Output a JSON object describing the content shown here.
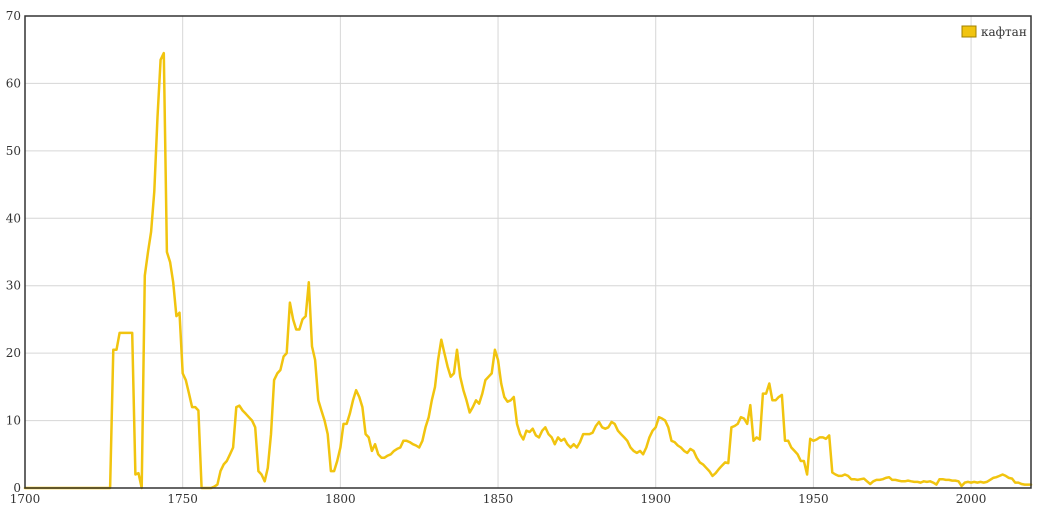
{
  "chart_data": {
    "type": "line",
    "title": "",
    "xlabel": "",
    "ylabel": "",
    "xlim": [
      1700,
      2019
    ],
    "ylim": [
      0,
      70
    ],
    "x_ticks": [
      1700,
      1750,
      1800,
      1850,
      1900,
      1950,
      2000
    ],
    "y_ticks": [
      0,
      10,
      20,
      30,
      40,
      50,
      60,
      70
    ],
    "grid": true,
    "legend": "top-right",
    "series": [
      {
        "name": "кафтан",
        "color": "#f1c40f",
        "points": [
          [
            1700,
            0
          ],
          [
            1710,
            0
          ],
          [
            1720,
            0
          ],
          [
            1727,
            0
          ],
          [
            1728,
            20.5
          ],
          [
            1729,
            20.5
          ],
          [
            1730,
            23
          ],
          [
            1731,
            23
          ],
          [
            1732,
            23
          ],
          [
            1733,
            23
          ],
          [
            1734,
            23
          ],
          [
            1735,
            2
          ],
          [
            1736,
            2.2
          ],
          [
            1737,
            0
          ],
          [
            1738,
            31.5
          ],
          [
            1739,
            35
          ],
          [
            1740,
            38
          ],
          [
            1741,
            44
          ],
          [
            1742,
            55
          ],
          [
            1743,
            63.5
          ],
          [
            1744,
            64.5
          ],
          [
            1745,
            35
          ],
          [
            1746,
            33.5
          ],
          [
            1747,
            30.5
          ],
          [
            1748,
            25.5
          ],
          [
            1749,
            26
          ],
          [
            1750,
            17
          ],
          [
            1751,
            16
          ],
          [
            1752,
            14
          ],
          [
            1753,
            12
          ],
          [
            1754,
            12
          ],
          [
            1755,
            11.5
          ],
          [
            1756,
            0
          ],
          [
            1757,
            0
          ],
          [
            1758,
            0
          ],
          [
            1759,
            0
          ],
          [
            1760,
            0.2
          ],
          [
            1761,
            0.5
          ],
          [
            1762,
            2.5
          ],
          [
            1763,
            3.5
          ],
          [
            1764,
            4
          ],
          [
            1765,
            5
          ],
          [
            1766,
            6
          ],
          [
            1767,
            12
          ],
          [
            1768,
            12.2
          ],
          [
            1769,
            11.5
          ],
          [
            1770,
            11
          ],
          [
            1771,
            10.5
          ],
          [
            1772,
            10
          ],
          [
            1773,
            9
          ],
          [
            1774,
            2.5
          ],
          [
            1775,
            2
          ],
          [
            1776,
            1
          ],
          [
            1777,
            3
          ],
          [
            1778,
            8
          ],
          [
            1779,
            16
          ],
          [
            1780,
            17
          ],
          [
            1781,
            17.5
          ],
          [
            1782,
            19.5
          ],
          [
            1783,
            20
          ],
          [
            1784,
            27.5
          ],
          [
            1785,
            25
          ],
          [
            1786,
            23.5
          ],
          [
            1787,
            23.5
          ],
          [
            1788,
            25
          ],
          [
            1789,
            25.5
          ],
          [
            1790,
            30.5
          ],
          [
            1791,
            21
          ],
          [
            1792,
            19
          ],
          [
            1793,
            13
          ],
          [
            1794,
            11.5
          ],
          [
            1795,
            10
          ],
          [
            1796,
            8
          ],
          [
            1797,
            2.5
          ],
          [
            1798,
            2.5
          ],
          [
            1799,
            4
          ],
          [
            1800,
            6
          ],
          [
            1801,
            9.5
          ],
          [
            1802,
            9.5
          ],
          [
            1803,
            11
          ],
          [
            1804,
            13
          ],
          [
            1805,
            14.5
          ],
          [
            1806,
            13.5
          ],
          [
            1807,
            12
          ],
          [
            1808,
            8
          ],
          [
            1809,
            7.5
          ],
          [
            1810,
            5.5
          ],
          [
            1811,
            6.5
          ],
          [
            1812,
            5
          ],
          [
            1813,
            4.5
          ],
          [
            1814,
            4.5
          ],
          [
            1815,
            4.8
          ],
          [
            1816,
            5
          ],
          [
            1817,
            5.5
          ],
          [
            1818,
            5.8
          ],
          [
            1819,
            6
          ],
          [
            1820,
            7
          ],
          [
            1821,
            7
          ],
          [
            1822,
            6.8
          ],
          [
            1823,
            6.5
          ],
          [
            1824,
            6.3
          ],
          [
            1825,
            6
          ],
          [
            1826,
            7
          ],
          [
            1827,
            9
          ],
          [
            1828,
            10.5
          ],
          [
            1829,
            13
          ],
          [
            1830,
            15
          ],
          [
            1831,
            19
          ],
          [
            1832,
            22
          ],
          [
            1833,
            20
          ],
          [
            1834,
            18
          ],
          [
            1835,
            16.5
          ],
          [
            1836,
            17
          ],
          [
            1837,
            20.5
          ],
          [
            1838,
            16.5
          ],
          [
            1839,
            14.5
          ],
          [
            1840,
            13
          ],
          [
            1841,
            11.2
          ],
          [
            1842,
            12
          ],
          [
            1843,
            13
          ],
          [
            1844,
            12.5
          ],
          [
            1845,
            14
          ],
          [
            1846,
            16
          ],
          [
            1847,
            16.5
          ],
          [
            1848,
            17
          ],
          [
            1849,
            20.5
          ],
          [
            1850,
            19
          ],
          [
            1851,
            15.5
          ],
          [
            1852,
            13.5
          ],
          [
            1853,
            12.8
          ],
          [
            1854,
            13
          ],
          [
            1855,
            13.5
          ],
          [
            1856,
            9.5
          ],
          [
            1857,
            8
          ],
          [
            1858,
            7.2
          ],
          [
            1859,
            8.5
          ],
          [
            1860,
            8.3
          ],
          [
            1861,
            8.8
          ],
          [
            1862,
            7.8
          ],
          [
            1863,
            7.5
          ],
          [
            1864,
            8.5
          ],
          [
            1865,
            9
          ],
          [
            1866,
            8
          ],
          [
            1867,
            7.5
          ],
          [
            1868,
            6.5
          ],
          [
            1869,
            7.5
          ],
          [
            1870,
            7
          ],
          [
            1871,
            7.3
          ],
          [
            1872,
            6.5
          ],
          [
            1873,
            6
          ],
          [
            1874,
            6.5
          ],
          [
            1875,
            6
          ],
          [
            1876,
            6.8
          ],
          [
            1877,
            8
          ],
          [
            1878,
            8
          ],
          [
            1879,
            8
          ],
          [
            1880,
            8.2
          ],
          [
            1881,
            9.2
          ],
          [
            1882,
            9.8
          ],
          [
            1883,
            9
          ],
          [
            1884,
            8.8
          ],
          [
            1885,
            9
          ],
          [
            1886,
            9.8
          ],
          [
            1887,
            9.5
          ],
          [
            1888,
            8.5
          ],
          [
            1889,
            8
          ],
          [
            1890,
            7.5
          ],
          [
            1891,
            7
          ],
          [
            1892,
            6
          ],
          [
            1893,
            5.5
          ],
          [
            1894,
            5.2
          ],
          [
            1895,
            5.5
          ],
          [
            1896,
            5
          ],
          [
            1897,
            6
          ],
          [
            1898,
            7.5
          ],
          [
            1899,
            8.5
          ],
          [
            1900,
            9
          ],
          [
            1901,
            10.5
          ],
          [
            1902,
            10.3
          ],
          [
            1903,
            10
          ],
          [
            1904,
            9
          ],
          [
            1905,
            7
          ],
          [
            1906,
            6.8
          ],
          [
            1907,
            6.3
          ],
          [
            1908,
            6
          ],
          [
            1909,
            5.5
          ],
          [
            1910,
            5.2
          ],
          [
            1911,
            5.8
          ],
          [
            1912,
            5.5
          ],
          [
            1913,
            4.5
          ],
          [
            1914,
            3.8
          ],
          [
            1915,
            3.5
          ],
          [
            1916,
            3
          ],
          [
            1917,
            2.5
          ],
          [
            1918,
            1.8
          ],
          [
            1919,
            2.2
          ],
          [
            1920,
            2.8
          ],
          [
            1921,
            3.3
          ],
          [
            1922,
            3.8
          ],
          [
            1923,
            3.7
          ],
          [
            1924,
            9
          ],
          [
            1925,
            9.2
          ],
          [
            1926,
            9.5
          ],
          [
            1927,
            10.5
          ],
          [
            1928,
            10.3
          ],
          [
            1929,
            9.5
          ],
          [
            1930,
            12.3
          ],
          [
            1931,
            7
          ],
          [
            1932,
            7.5
          ],
          [
            1933,
            7.2
          ],
          [
            1934,
            14
          ],
          [
            1935,
            14
          ],
          [
            1936,
            15.5
          ],
          [
            1937,
            13
          ],
          [
            1938,
            13
          ],
          [
            1939,
            13.5
          ],
          [
            1940,
            13.8
          ],
          [
            1941,
            7
          ],
          [
            1942,
            7
          ],
          [
            1943,
            6
          ],
          [
            1944,
            5.5
          ],
          [
            1945,
            5
          ],
          [
            1946,
            4
          ],
          [
            1947,
            4
          ],
          [
            1948,
            2
          ],
          [
            1949,
            7.3
          ],
          [
            1950,
            7
          ],
          [
            1951,
            7.2
          ],
          [
            1952,
            7.5
          ],
          [
            1953,
            7.5
          ],
          [
            1954,
            7.3
          ],
          [
            1955,
            7.8
          ],
          [
            1956,
            2.3
          ],
          [
            1957,
            2
          ],
          [
            1958,
            1.8
          ],
          [
            1959,
            1.8
          ],
          [
            1960,
            2
          ],
          [
            1961,
            1.8
          ],
          [
            1962,
            1.3
          ],
          [
            1963,
            1.3
          ],
          [
            1964,
            1.2
          ],
          [
            1965,
            1.3
          ],
          [
            1966,
            1.4
          ],
          [
            1967,
            1
          ],
          [
            1968,
            0.6
          ],
          [
            1969,
            1
          ],
          [
            1970,
            1.2
          ],
          [
            1971,
            1.2
          ],
          [
            1972,
            1.3
          ],
          [
            1973,
            1.5
          ],
          [
            1974,
            1.6
          ],
          [
            1975,
            1.2
          ],
          [
            1976,
            1.2
          ],
          [
            1977,
            1.1
          ],
          [
            1978,
            1
          ],
          [
            1979,
            1
          ],
          [
            1980,
            1.1
          ],
          [
            1981,
            1
          ],
          [
            1982,
            0.9
          ],
          [
            1983,
            0.9
          ],
          [
            1984,
            0.8
          ],
          [
            1985,
            1
          ],
          [
            1986,
            0.9
          ],
          [
            1987,
            1
          ],
          [
            1988,
            0.8
          ],
          [
            1989,
            0.5
          ],
          [
            1990,
            1.3
          ],
          [
            1991,
            1.3
          ],
          [
            1992,
            1.2
          ],
          [
            1993,
            1.2
          ],
          [
            1994,
            1.1
          ],
          [
            1995,
            1.1
          ],
          [
            1996,
            1
          ],
          [
            1997,
            0.3
          ],
          [
            1998,
            0.8
          ],
          [
            1999,
            0.9
          ],
          [
            2000,
            0.8
          ],
          [
            2001,
            0.9
          ],
          [
            2002,
            0.8
          ],
          [
            2003,
            0.9
          ],
          [
            2004,
            0.8
          ],
          [
            2005,
            0.9
          ],
          [
            2006,
            1.2
          ],
          [
            2007,
            1.5
          ],
          [
            2008,
            1.6
          ],
          [
            2009,
            1.8
          ],
          [
            2010,
            2
          ],
          [
            2011,
            1.8
          ],
          [
            2012,
            1.5
          ],
          [
            2013,
            1.4
          ],
          [
            2014,
            0.8
          ],
          [
            2015,
            0.8
          ],
          [
            2016,
            0.6
          ],
          [
            2017,
            0.5
          ],
          [
            2018,
            0.5
          ],
          [
            2019,
            0.5
          ]
        ]
      }
    ]
  }
}
